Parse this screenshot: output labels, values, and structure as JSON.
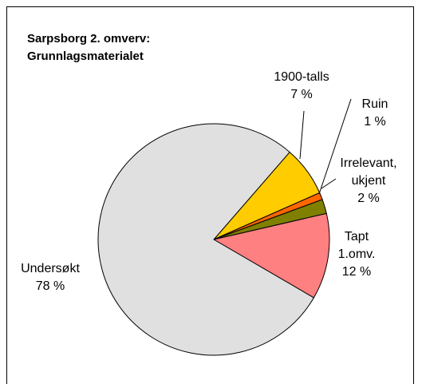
{
  "chart_data": {
    "type": "pie",
    "title": "Sarpsborg 2. omverv: Grunnlagsmaterialet",
    "categories": [
      "1900-talls",
      "Ruin",
      "Irrelevant, ukjent",
      "Tapt 1.omv.",
      "Undersøkt"
    ],
    "values": [
      7,
      1,
      2,
      12,
      78
    ],
    "value_labels": [
      "7 %",
      "1 %",
      "2 %",
      "12 %",
      "78 %"
    ],
    "colors": [
      "#ffcc00",
      "#ff6600",
      "#808000",
      "#ff8080",
      "#e0e0e0"
    ]
  }
}
